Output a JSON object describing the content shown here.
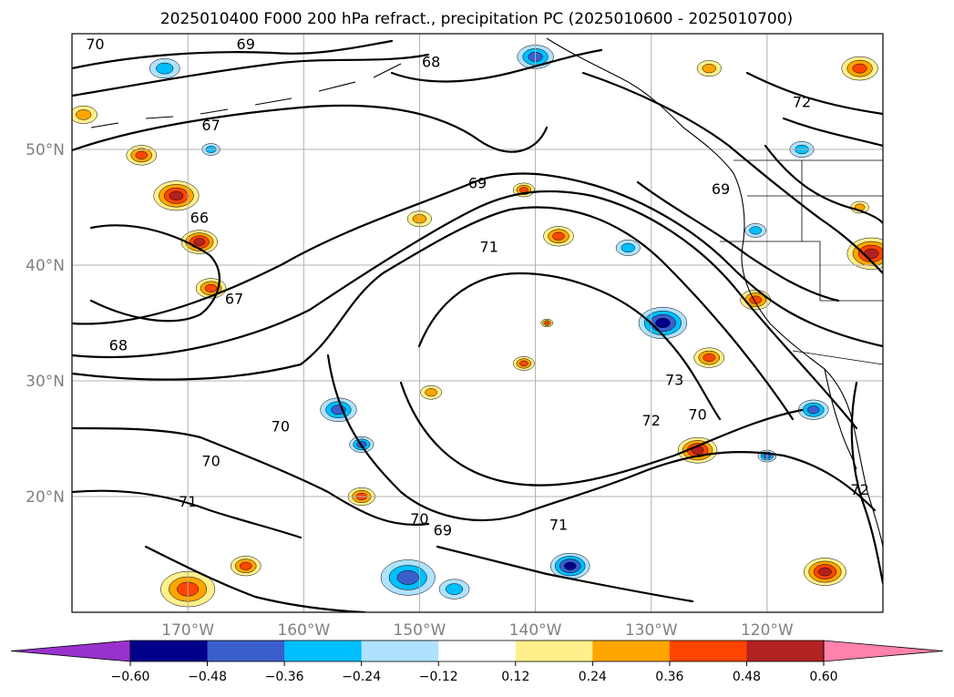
{
  "title": "2025010400 F000 200 hPa refract., precipitation PC (2025010600 - 2025010700)",
  "map": {
    "lon_range": [
      -180,
      -110
    ],
    "lat_range": [
      10,
      60
    ],
    "lon_ticks": [
      {
        "lon": -170,
        "label": "170°W"
      },
      {
        "lon": -160,
        "label": "160°W"
      },
      {
        "lon": -150,
        "label": "150°W"
      },
      {
        "lon": -140,
        "label": "140°W"
      },
      {
        "lon": -130,
        "label": "130°W"
      },
      {
        "lon": -120,
        "label": "120°W"
      }
    ],
    "lat_ticks": [
      {
        "lat": 50,
        "label": "50°N"
      },
      {
        "lat": 40,
        "label": "40°N"
      },
      {
        "lat": 30,
        "label": "30°N"
      },
      {
        "lat": 20,
        "label": "20°N"
      }
    ],
    "grid": true
  },
  "contour_labels": [
    {
      "text": "70",
      "lon": -178,
      "lat": 59
    },
    {
      "text": "69",
      "lon": -165,
      "lat": 59
    },
    {
      "text": "68",
      "lon": -149,
      "lat": 57.5
    },
    {
      "text": "67",
      "lon": -168,
      "lat": 52
    },
    {
      "text": "72",
      "lon": -117,
      "lat": 54
    },
    {
      "text": "69",
      "lon": -145,
      "lat": 47
    },
    {
      "text": "69",
      "lon": -124,
      "lat": 46.5
    },
    {
      "text": "66",
      "lon": -169,
      "lat": 44
    },
    {
      "text": "71",
      "lon": -144,
      "lat": 41.5
    },
    {
      "text": "67",
      "lon": -166,
      "lat": 37
    },
    {
      "text": "68",
      "lon": -176,
      "lat": 33
    },
    {
      "text": "73",
      "lon": -128,
      "lat": 30
    },
    {
      "text": "70",
      "lon": -162,
      "lat": 26
    },
    {
      "text": "72",
      "lon": -130,
      "lat": 26.5
    },
    {
      "text": "70",
      "lon": -126,
      "lat": 27
    },
    {
      "text": "70",
      "lon": -168,
      "lat": 23
    },
    {
      "text": "71",
      "lon": -170,
      "lat": 19.5
    },
    {
      "text": "72",
      "lon": -112,
      "lat": 20.5
    },
    {
      "text": "70",
      "lon": -150,
      "lat": 18
    },
    {
      "text": "69",
      "lon": -148,
      "lat": 17
    },
    {
      "text": "71",
      "lon": -138,
      "lat": 17.5
    }
  ],
  "colorbar": {
    "ticks": [
      "−0.60",
      "−0.48",
      "−0.36",
      "−0.24",
      "−0.12",
      "0.12",
      "0.24",
      "0.36",
      "0.48",
      "0.60"
    ],
    "colors": [
      "#9932cc",
      "#00008b",
      "#3a5fcd",
      "#00bfff",
      "#b0e2ff",
      "#ffffff",
      "#fff08c",
      "#ffa500",
      "#ff4500",
      "#b22222",
      "#ff82ab"
    ]
  },
  "precip_blobs": [
    {
      "lon": -171,
      "lat": 46,
      "r": 1.5,
      "v": 0.5
    },
    {
      "lon": -169,
      "lat": 42,
      "r": 1.2,
      "v": 0.55
    },
    {
      "lon": -168,
      "lat": 38,
      "r": 1.0,
      "v": 0.4
    },
    {
      "lon": -174,
      "lat": 49.5,
      "r": 1.0,
      "v": 0.45
    },
    {
      "lon": -179,
      "lat": 53,
      "r": 0.9,
      "v": 0.35
    },
    {
      "lon": -150,
      "lat": 44,
      "r": 0.8,
      "v": 0.35
    },
    {
      "lon": -138,
      "lat": 42.5,
      "r": 1.0,
      "v": 0.45
    },
    {
      "lon": -141,
      "lat": 46.5,
      "r": 0.7,
      "v": 0.4
    },
    {
      "lon": -132,
      "lat": 41.5,
      "r": 0.8,
      "v": -0.35
    },
    {
      "lon": -129,
      "lat": 35,
      "r": 1.6,
      "v": -0.6
    },
    {
      "lon": -125,
      "lat": 32,
      "r": 1.0,
      "v": 0.4
    },
    {
      "lon": -121,
      "lat": 37,
      "r": 1.0,
      "v": 0.4
    },
    {
      "lon": -111,
      "lat": 41,
      "r": 1.6,
      "v": 0.5
    },
    {
      "lon": -117,
      "lat": 50,
      "r": 0.8,
      "v": -0.3
    },
    {
      "lon": -121,
      "lat": 43,
      "r": 0.7,
      "v": -0.35
    },
    {
      "lon": -116,
      "lat": 27.5,
      "r": 1.0,
      "v": -0.4
    },
    {
      "lon": -126,
      "lat": 24,
      "r": 1.3,
      "v": 0.55
    },
    {
      "lon": -120,
      "lat": 23.5,
      "r": 0.6,
      "v": -0.4
    },
    {
      "lon": -115,
      "lat": 13.5,
      "r": 1.4,
      "v": 0.6
    },
    {
      "lon": -137,
      "lat": 14,
      "r": 1.3,
      "v": -0.5
    },
    {
      "lon": -157,
      "lat": 27.5,
      "r": 1.2,
      "v": -0.45
    },
    {
      "lon": -155,
      "lat": 24.5,
      "r": 0.8,
      "v": -0.4
    },
    {
      "lon": -155,
      "lat": 20,
      "r": 0.9,
      "v": 0.4
    },
    {
      "lon": -170,
      "lat": 12,
      "r": 1.8,
      "v": 0.4
    },
    {
      "lon": -165,
      "lat": 14,
      "r": 1.0,
      "v": 0.4
    },
    {
      "lon": -151,
      "lat": 13,
      "r": 1.8,
      "v": -0.45
    },
    {
      "lon": -147,
      "lat": 12,
      "r": 1.0,
      "v": -0.35
    },
    {
      "lon": -140,
      "lat": 58,
      "r": 1.2,
      "v": -0.4
    },
    {
      "lon": -172,
      "lat": 57,
      "r": 1.0,
      "v": -0.3
    },
    {
      "lon": -112,
      "lat": 57,
      "r": 1.2,
      "v": 0.4
    },
    {
      "lon": -125,
      "lat": 57,
      "r": 0.8,
      "v": 0.35
    },
    {
      "lon": -149,
      "lat": 29,
      "r": 0.7,
      "v": 0.35
    },
    {
      "lon": -141,
      "lat": 31.5,
      "r": 0.7,
      "v": 0.4
    },
    {
      "lon": -139,
      "lat": 35,
      "r": 0.4,
      "v": 0.4
    },
    {
      "lon": -168,
      "lat": 50,
      "r": 0.6,
      "v": -0.3
    },
    {
      "lon": -112,
      "lat": 45,
      "r": 0.6,
      "v": 0.35
    }
  ]
}
